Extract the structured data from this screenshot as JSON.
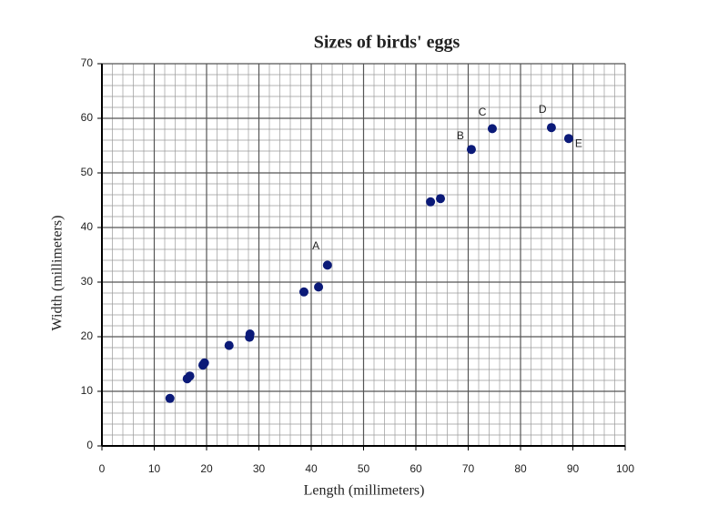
{
  "chart_data": {
    "type": "scatter",
    "title": "Sizes of birds' eggs",
    "x_label": "Length (millimeters)",
    "y_label": "Width (millimeters)",
    "x": [
      13.0,
      16.3,
      16.8,
      19.3,
      19.6,
      24.3,
      28.2,
      28.3,
      38.6,
      41.4,
      43.1,
      62.8,
      64.7,
      70.6,
      74.6,
      85.9,
      89.2
    ],
    "y": [
      8.7,
      12.3,
      12.8,
      14.8,
      15.2,
      18.4,
      19.9,
      20.5,
      28.2,
      29.1,
      33.1,
      44.7,
      45.3,
      54.3,
      58.1,
      58.3,
      56.3
    ],
    "color": "#0b1a78",
    "annotations": [
      "A",
      "B",
      "C",
      "D",
      "E"
    ],
    "xlim": [
      0,
      100
    ],
    "xticks": [
      0,
      10,
      20,
      30,
      40,
      50,
      60,
      70,
      80,
      90,
      100
    ],
    "ylim": [
      0,
      70
    ],
    "yticks": [
      0,
      10,
      20,
      30,
      40,
      50,
      60,
      70
    ],
    "grid": true
  }
}
